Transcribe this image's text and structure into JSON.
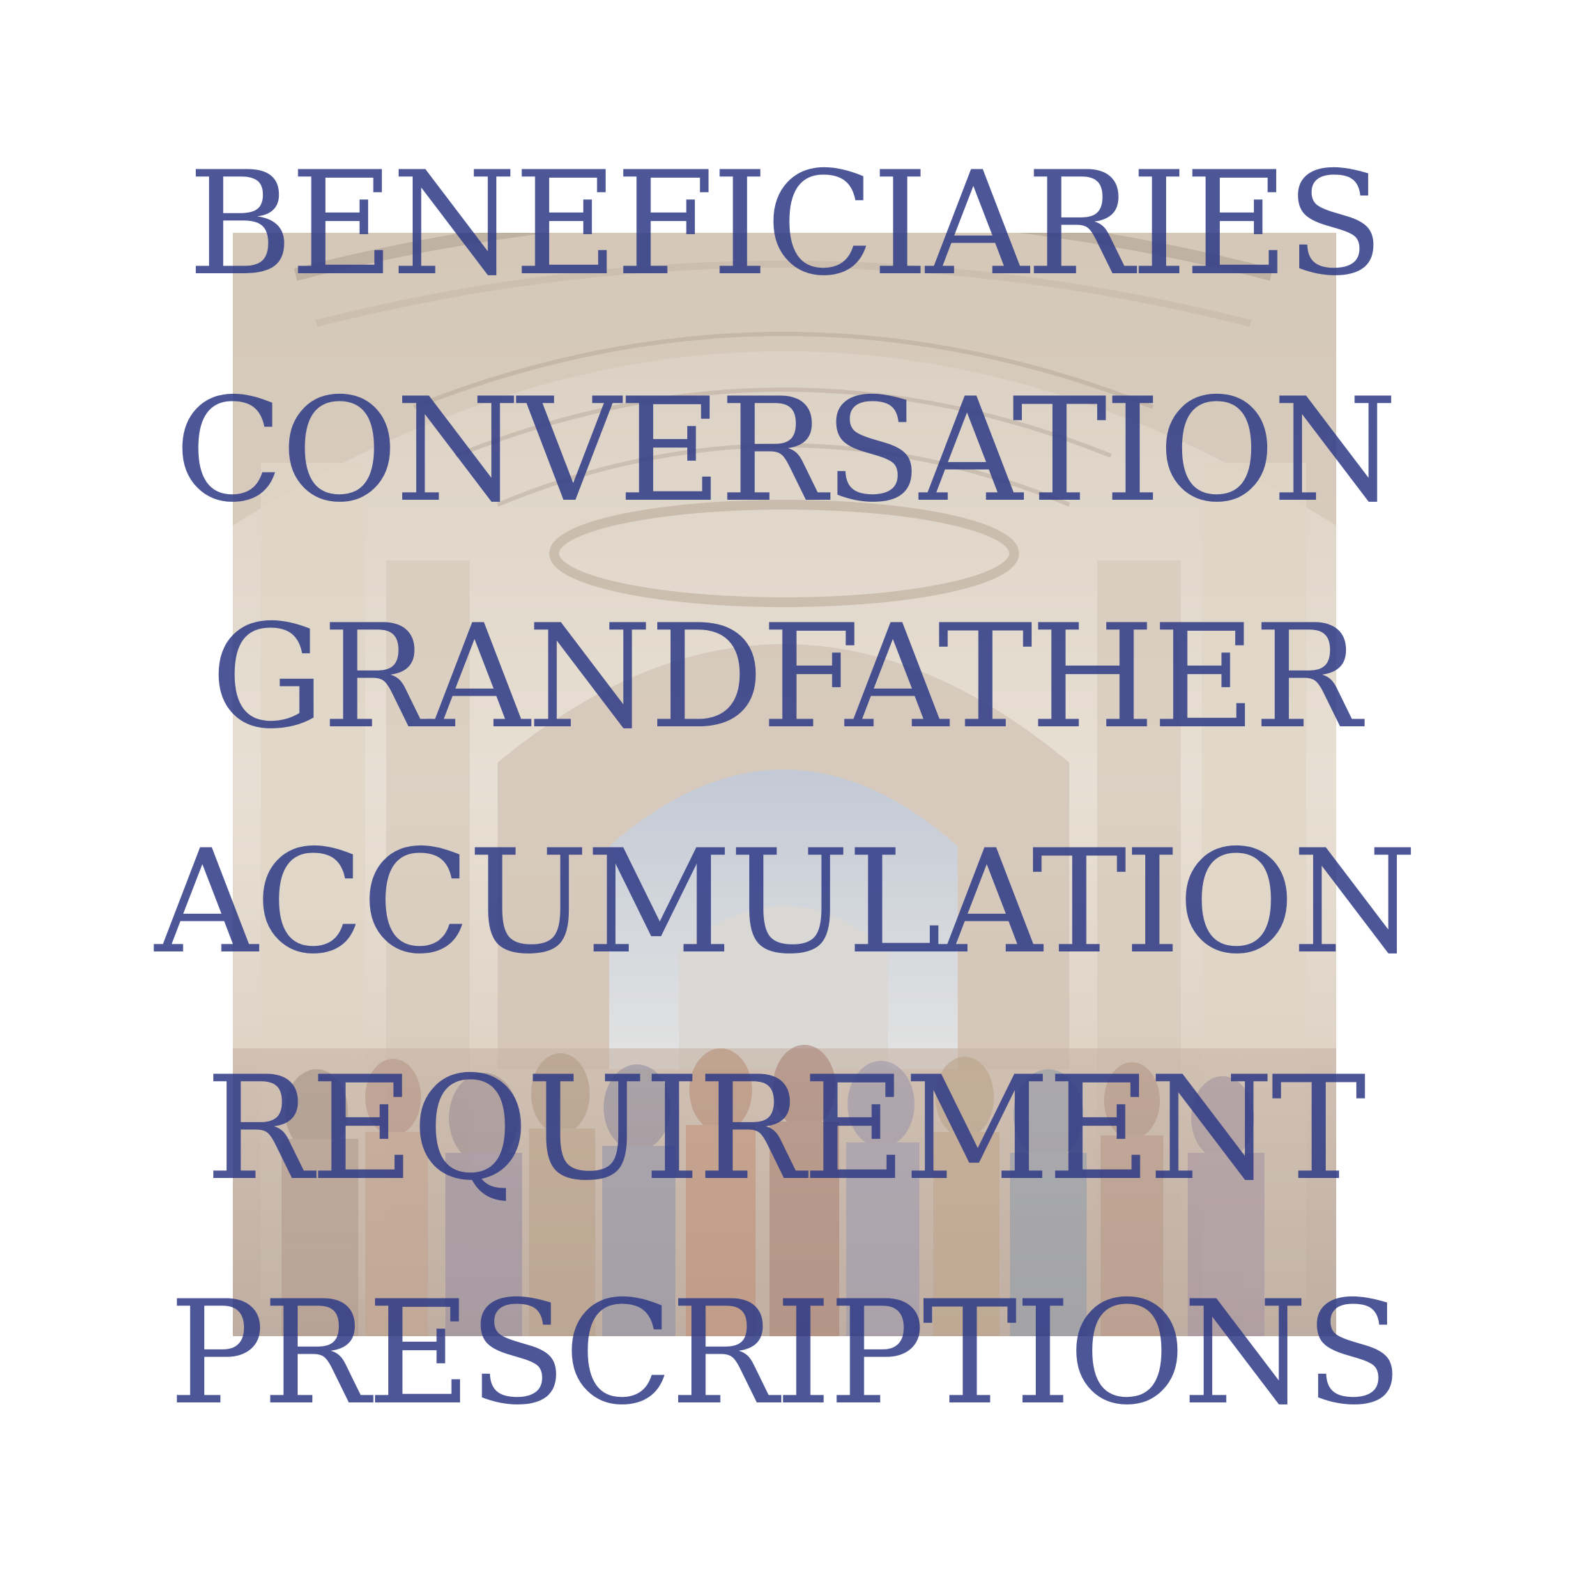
{
  "theme": {
    "word_color": "#2e3a86",
    "background": "#ffffff",
    "fresco_stone": "#d9ccbd",
    "fresco_shadow": "#a89585",
    "fresco_sky": "#b8c3d4"
  },
  "background_image": {
    "icon": "renaissance-fresco-image"
  },
  "words": [
    "BENEFICIARIES",
    "CONVERSATION",
    "GRANDFATHER",
    "ACCUMULATION",
    "REQUIREMENT",
    "PRESCRIPTIONS"
  ]
}
